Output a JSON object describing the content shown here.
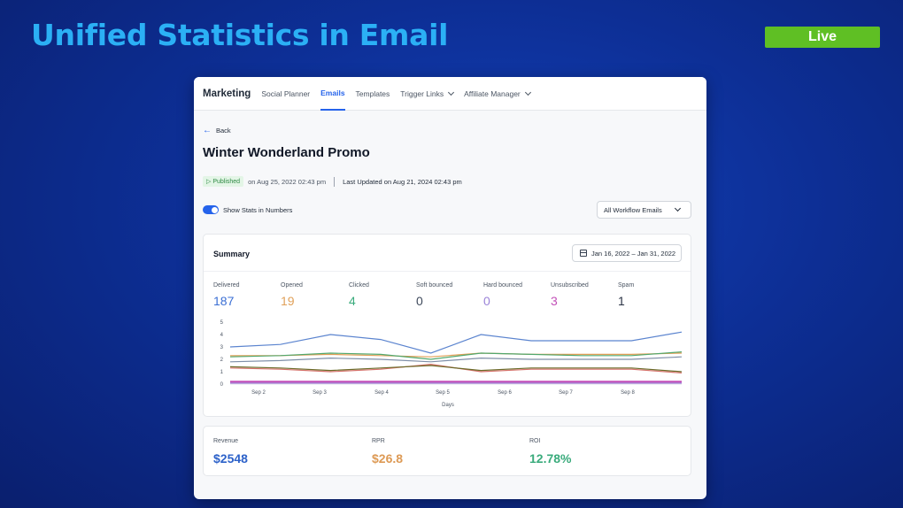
{
  "slide": {
    "title": "Unified Statistics in Email",
    "live_label": "Live"
  },
  "nav": {
    "brand": "Marketing",
    "items": [
      {
        "label": "Social Planner",
        "active": false,
        "dropdown": false
      },
      {
        "label": "Emails",
        "active": true,
        "dropdown": false
      },
      {
        "label": "Templates",
        "active": false,
        "dropdown": false
      },
      {
        "label": "Trigger Links",
        "active": false,
        "dropdown": true
      },
      {
        "label": "Affiliate Manager",
        "active": false,
        "dropdown": true
      }
    ]
  },
  "page": {
    "back_label": "Back",
    "title": "Winter Wonderland Promo",
    "status_badge": "Published",
    "published_on": "on Aug 25, 2022 02:43 pm",
    "last_updated": "Last Updated on Aug 21, 2024 02:43 pm",
    "toggle_label": "Show Stats in Numbers",
    "toggle_on": true,
    "filter_value": "All Workflow Emails"
  },
  "summary": {
    "title": "Summary",
    "date_range": "Jan 16, 2022 – Jan 31, 2022",
    "stats": [
      {
        "label": "Delivered",
        "value": "187",
        "color": "#3b6fd4"
      },
      {
        "label": "Opened",
        "value": "19",
        "color": "#e0a15a"
      },
      {
        "label": "Clicked",
        "value": "4",
        "color": "#3aab7c"
      },
      {
        "label": "Soft bounced",
        "value": "0",
        "color": "#3f4a5c"
      },
      {
        "label": "Hard bounced",
        "value": "0",
        "color": "#9a83d8"
      },
      {
        "label": "Unsubscribed",
        "value": "3",
        "color": "#c24fb8"
      },
      {
        "label": "Spam",
        "value": "1",
        "color": "#2b3446"
      }
    ]
  },
  "chart_data": {
    "type": "line",
    "title": "",
    "xlabel": "Days",
    "ylabel": "",
    "ylim": [
      0,
      5
    ],
    "yticks": [
      "0",
      "1",
      "2",
      "3",
      "4",
      "5"
    ],
    "x_tick_labels": [
      "Sep 2",
      "Sep 3",
      "Sep 4",
      "Sep 5",
      "Sep 6",
      "Sep 7",
      "Sep 8"
    ],
    "x_points": 10,
    "series": [
      {
        "color": "#5b84cf",
        "values": [
          3.0,
          3.2,
          4.0,
          3.6,
          2.5,
          4.0,
          3.5,
          3.5,
          3.5,
          4.2
        ]
      },
      {
        "color": "#e3a058",
        "values": [
          2.3,
          2.3,
          2.4,
          2.3,
          2.2,
          2.5,
          2.4,
          2.4,
          2.4,
          2.5
        ]
      },
      {
        "color": "#52a86e",
        "values": [
          2.2,
          2.3,
          2.5,
          2.4,
          2.0,
          2.5,
          2.4,
          2.3,
          2.3,
          2.6
        ]
      },
      {
        "color": "#7f8fa8",
        "values": [
          1.8,
          1.9,
          2.1,
          2.0,
          1.8,
          2.1,
          2.0,
          2.0,
          2.0,
          2.2
        ]
      },
      {
        "color": "#d6726b",
        "values": [
          1.3,
          1.2,
          1.0,
          1.2,
          1.6,
          1.0,
          1.2,
          1.2,
          1.2,
          0.9
        ]
      },
      {
        "color": "#6b6b2a",
        "values": [
          1.4,
          1.3,
          1.1,
          1.3,
          1.5,
          1.1,
          1.3,
          1.3,
          1.3,
          1.0
        ]
      },
      {
        "color": "#a686d8",
        "values": [
          0.1,
          0.1,
          0.1,
          0.1,
          0.1,
          0.1,
          0.1,
          0.1,
          0.1,
          0.1
        ]
      },
      {
        "color": "#c24fb8",
        "values": [
          0.2,
          0.2,
          0.2,
          0.2,
          0.2,
          0.2,
          0.2,
          0.2,
          0.2,
          0.2
        ]
      }
    ]
  },
  "revenue": {
    "items": [
      {
        "label": "Revenue",
        "value": "$2548",
        "color": "#2d62c9"
      },
      {
        "label": "RPR",
        "value": "$26.8",
        "color": "#dd9a55"
      },
      {
        "label": "ROI",
        "value": "12.78%",
        "color": "#3aab7c"
      }
    ]
  }
}
